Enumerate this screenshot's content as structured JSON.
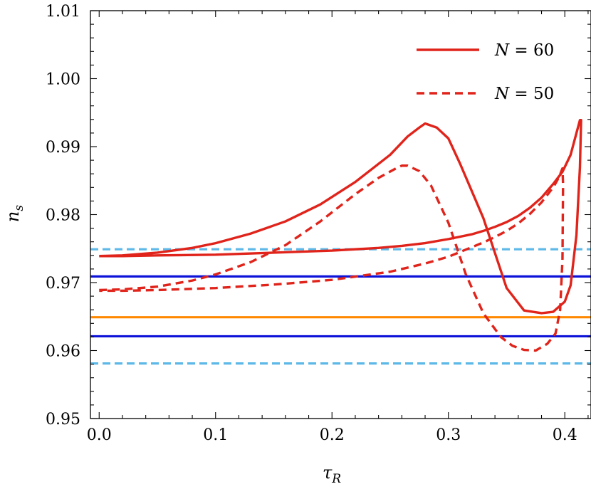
{
  "chart_data": {
    "type": "line",
    "title": "",
    "xlabel": "τ_R",
    "ylabel": "n_s",
    "xlim": [
      -0.0075,
      0.4225
    ],
    "ylim": [
      0.95,
      1.01
    ],
    "xticks": [
      0.0,
      0.1,
      0.2,
      0.3,
      0.4
    ],
    "xtick_labels": [
      "0.0",
      "0.1",
      "0.2",
      "0.3",
      "0.4"
    ],
    "yticks": [
      0.95,
      0.96,
      0.97,
      0.98,
      0.99,
      1.0,
      1.01
    ],
    "ytick_labels": [
      "0.95",
      "0.96",
      "0.97",
      "0.98",
      "0.99",
      "1.00",
      "1.01"
    ],
    "grid": false,
    "legend_position": "top-right",
    "series": [
      {
        "name": "N = 60",
        "legend_var": "N",
        "legend_eq": "= 60",
        "style": "solid",
        "color": "#e0241b",
        "x": [
          0.0,
          0.02,
          0.05,
          0.08,
          0.1,
          0.13,
          0.16,
          0.19,
          0.22,
          0.25,
          0.265,
          0.275,
          0.28,
          0.29,
          0.3,
          0.31,
          0.33,
          0.35,
          0.365,
          0.38,
          0.39,
          0.4,
          0.405,
          0.41,
          0.413,
          0.414,
          0.413,
          0.41,
          0.405,
          0.398,
          0.39,
          0.38,
          0.37,
          0.36,
          0.35,
          0.34,
          0.33,
          0.32,
          0.3,
          0.28,
          0.26,
          0.24,
          0.2,
          0.15,
          0.1,
          0.05,
          0.02,
          0.0
        ],
        "y": [
          0.9739,
          0.974,
          0.9744,
          0.9751,
          0.9758,
          0.9772,
          0.979,
          0.9815,
          0.9848,
          0.9888,
          0.9915,
          0.9928,
          0.9934,
          0.9928,
          0.9912,
          0.9875,
          0.9795,
          0.9692,
          0.9659,
          0.9655,
          0.9657,
          0.9672,
          0.9696,
          0.977,
          0.987,
          0.9939,
          0.9939,
          0.992,
          0.9888,
          0.9863,
          0.9845,
          0.9825,
          0.981,
          0.9798,
          0.9789,
          0.9782,
          0.9776,
          0.9771,
          0.9764,
          0.9758,
          0.9754,
          0.9751,
          0.9747,
          0.9744,
          0.9741,
          0.974,
          0.9739,
          0.9739
        ]
      },
      {
        "name": "N = 50",
        "legend_var": "N",
        "legend_eq": "= 50",
        "style": "dashed",
        "color": "#e0241b",
        "x": [
          0.0,
          0.02,
          0.05,
          0.08,
          0.1,
          0.13,
          0.16,
          0.19,
          0.22,
          0.24,
          0.255,
          0.26,
          0.265,
          0.275,
          0.285,
          0.3,
          0.315,
          0.33,
          0.345,
          0.355,
          0.365,
          0.375,
          0.385,
          0.392,
          0.396,
          0.398,
          0.3985,
          0.398,
          0.395,
          0.39,
          0.38,
          0.37,
          0.36,
          0.35,
          0.34,
          0.33,
          0.32,
          0.3,
          0.28,
          0.25,
          0.2,
          0.15,
          0.1,
          0.05,
          0.02,
          0.0
        ],
        "y": [
          0.9689,
          0.969,
          0.9694,
          0.9703,
          0.9712,
          0.973,
          0.9755,
          0.979,
          0.983,
          0.9854,
          0.9868,
          0.9872,
          0.9872,
          0.9864,
          0.9843,
          0.9788,
          0.9712,
          0.9655,
          0.962,
          0.9607,
          0.9601,
          0.96,
          0.961,
          0.9625,
          0.966,
          0.9735,
          0.9845,
          0.9868,
          0.9855,
          0.984,
          0.9818,
          0.9801,
          0.9787,
          0.9776,
          0.9767,
          0.9759,
          0.9752,
          0.9738,
          0.9728,
          0.9716,
          0.9704,
          0.9697,
          0.9692,
          0.9689,
          0.9688,
          0.9688
        ]
      }
    ],
    "reference_lines": [
      {
        "name": "light-blue-dashed-upper",
        "y": 0.9749,
        "color": "#5db8e8",
        "style": "dashed"
      },
      {
        "name": "blue-upper",
        "y": 0.9709,
        "color": "#0d12d9",
        "style": "solid"
      },
      {
        "name": "orange-center",
        "y": 0.9649,
        "color": "#ff8800",
        "style": "solid"
      },
      {
        "name": "blue-lower",
        "y": 0.9621,
        "color": "#0d12d9",
        "style": "solid"
      },
      {
        "name": "light-blue-dashed-lower",
        "y": 0.9581,
        "color": "#5db8e8",
        "style": "dashed"
      }
    ]
  }
}
